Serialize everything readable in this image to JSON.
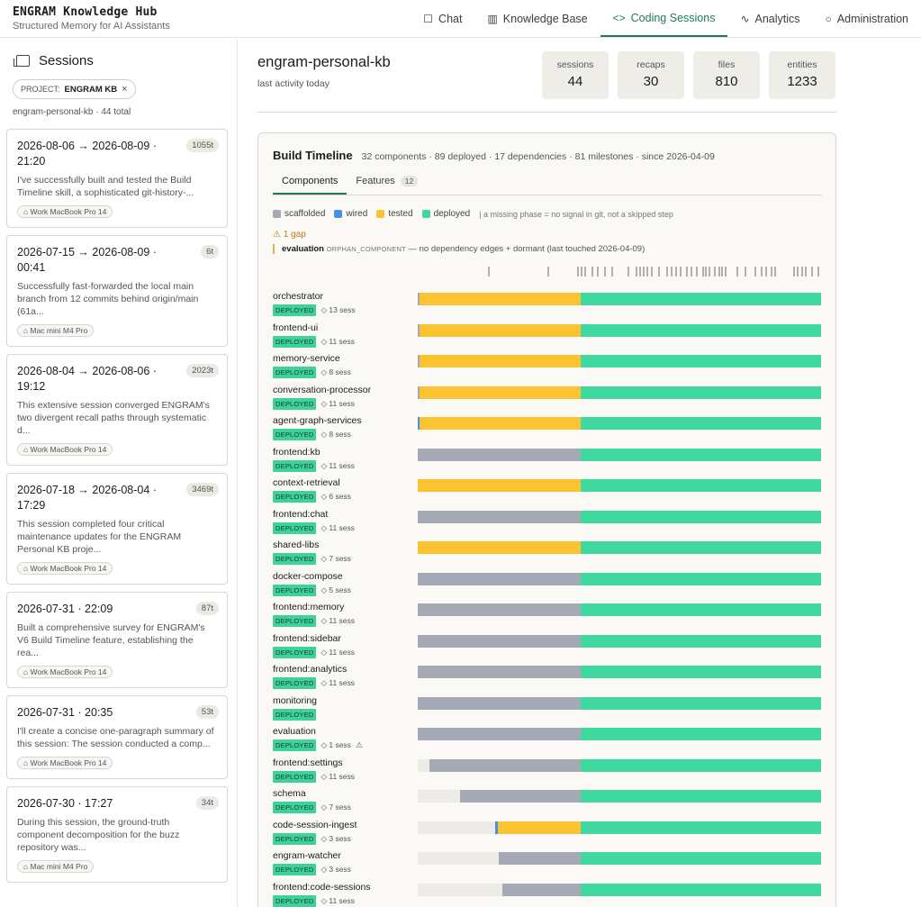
{
  "app": {
    "title": "ENGRAM Knowledge Hub",
    "subtitle": "Structured Memory for AI Assistants"
  },
  "nav": {
    "items": [
      {
        "label": "Chat",
        "icon": "chat-icon",
        "glyph": "☐",
        "active": false
      },
      {
        "label": "Knowledge Base",
        "icon": "book-icon",
        "glyph": "▥",
        "active": false
      },
      {
        "label": "Coding Sessions",
        "icon": "code-icon",
        "glyph": "<>",
        "active": true
      },
      {
        "label": "Analytics",
        "icon": "activity-icon",
        "glyph": "∿",
        "active": false
      },
      {
        "label": "Administration",
        "icon": "shield-icon",
        "glyph": "○",
        "active": false
      }
    ]
  },
  "sidebar": {
    "title": "Sessions",
    "filter_prefix": "PROJECT:",
    "filter_value": "ENGRAM KB",
    "filter_close": "×",
    "count_text": "engram-personal-kb · 44 total",
    "sessions": [
      {
        "date": "2026-08-06 → 2026-08-09 · 21:20",
        "badge": "1055t",
        "text": "I've successfully built and tested the Build Timeline skill, a sophisticated git-history-...",
        "device": "⌂ Work MacBook Pro 14"
      },
      {
        "date": "2026-07-15 → 2026-08-09 · 00:41",
        "badge": "6t",
        "text": "Successfully fast-forwarded the local main branch from 12 commits behind origin/main (61a...",
        "device": "⌂ Mac mini M4 Pro"
      },
      {
        "date": "2026-08-04 → 2026-08-06 · 19:12",
        "badge": "2023t",
        "text": "This extensive session converged ENGRAM's two divergent recall paths through systematic d...",
        "device": "⌂ Work MacBook Pro 14"
      },
      {
        "date": "2026-07-18 → 2026-08-04 · 17:29",
        "badge": "3469t",
        "text": "This session completed four critical maintenance updates for the ENGRAM Personal KB proje...",
        "device": "⌂ Work MacBook Pro 14"
      },
      {
        "date": "2026-07-31 · 22:09",
        "badge": "87t",
        "text": "Built a comprehensive survey for ENGRAM's V6 Build Timeline feature, establishing the rea...",
        "device": "⌂ Work MacBook Pro 14"
      },
      {
        "date": "2026-07-31 · 20:35",
        "badge": "53t",
        "text": "I'll create a concise one-paragraph summary of this session: The session conducted a comp...",
        "device": "⌂ Work MacBook Pro 14"
      },
      {
        "date": "2026-07-30 · 17:27",
        "badge": "34t",
        "text": "During this session, the ground-truth component decomposition for the buzz repository was...",
        "device": "⌂ Mac mini M4 Pro"
      }
    ]
  },
  "main": {
    "title": "engram-personal-kb",
    "subtitle": "last activity today",
    "stats": [
      {
        "label": "sessions",
        "value": "44"
      },
      {
        "label": "recaps",
        "value": "30"
      },
      {
        "label": "files",
        "value": "810"
      },
      {
        "label": "entities",
        "value": "1233"
      }
    ]
  },
  "timeline": {
    "title": "Build Timeline",
    "meta": "32 components · 89 deployed · 17 dependencies · 81 milestones · since 2026-04-09",
    "tabs": [
      {
        "label": "Components",
        "count": "",
        "active": true
      },
      {
        "label": "Features",
        "count": "12",
        "active": false
      }
    ],
    "legend": [
      {
        "label": "scaffolded",
        "color": "#a4a9b3"
      },
      {
        "label": "wired",
        "color": "#4a90e2"
      },
      {
        "label": "tested",
        "color": "#fbc232"
      },
      {
        "label": "deployed",
        "color": "#3fd99f"
      }
    ],
    "legend_note": "| a missing phase = no signal in git, not a skipped step",
    "gap_label": "⚠ 1 gap",
    "gap_name": "evaluation",
    "gap_tag": "ORPHAN_COMPONENT",
    "gap_text": "— no dependency edges + dormant (last touched 2026-04-09)",
    "deployed_label": "DEPLOYED",
    "milestone_ticks": [
      0.175,
      0.321,
      0.395,
      0.405,
      0.413,
      0.43,
      0.445,
      0.461,
      0.48,
      0.521,
      0.54,
      0.548,
      0.558,
      0.567,
      0.578,
      0.595,
      0.615,
      0.628,
      0.638,
      0.65,
      0.665,
      0.676,
      0.69,
      0.705,
      0.712,
      0.722,
      0.735,
      0.745,
      0.752,
      0.762,
      0.79,
      0.81,
      0.835,
      0.85,
      0.862,
      0.875,
      0.885,
      0.93,
      0.94,
      0.95,
      0.96,
      0.975,
      0.99
    ],
    "colors": {
      "empty": "#ecebe6",
      "scaffolded": "#a4a9b3",
      "wired": "#4a90e2",
      "tested": "#fbc232",
      "deployed": "#3fd99f"
    },
    "components": [
      {
        "name": "orchestrator",
        "sess": "◇ 13 sess",
        "warn": false,
        "phases": {
          "empty": 0,
          "scaffolded": 0.004,
          "wired": 0,
          "tested": 0.401,
          "deployed": 0.595
        }
      },
      {
        "name": "frontend-ui",
        "sess": "◇ 11 sess",
        "warn": false,
        "phases": {
          "empty": 0,
          "scaffolded": 0.004,
          "wired": 0,
          "tested": 0.401,
          "deployed": 0.595
        }
      },
      {
        "name": "memory-service",
        "sess": "◇ 8 sess",
        "warn": false,
        "phases": {
          "empty": 0,
          "scaffolded": 0.004,
          "wired": 0,
          "tested": 0.401,
          "deployed": 0.595
        }
      },
      {
        "name": "conversation-processor",
        "sess": "◇ 11 sess",
        "warn": false,
        "phases": {
          "empty": 0,
          "scaffolded": 0.004,
          "wired": 0,
          "tested": 0.401,
          "deployed": 0.595
        }
      },
      {
        "name": "agent-graph-services",
        "sess": "◇ 8 sess",
        "warn": false,
        "phases": {
          "empty": 0,
          "scaffolded": 0,
          "wired": 0.004,
          "tested": 0.401,
          "deployed": 0.595
        }
      },
      {
        "name": "frontend:kb",
        "sess": "◇ 11 sess",
        "warn": false,
        "phases": {
          "empty": 0,
          "scaffolded": 0.405,
          "wired": 0,
          "tested": 0,
          "deployed": 0.595
        }
      },
      {
        "name": "context-retrieval",
        "sess": "◇ 6 sess",
        "warn": false,
        "phases": {
          "empty": 0,
          "scaffolded": 0,
          "wired": 0,
          "tested": 0.405,
          "deployed": 0.595
        }
      },
      {
        "name": "frontend:chat",
        "sess": "◇ 11 sess",
        "warn": false,
        "phases": {
          "empty": 0,
          "scaffolded": 0.405,
          "wired": 0,
          "tested": 0,
          "deployed": 0.595
        }
      },
      {
        "name": "shared-libs",
        "sess": "◇ 7 sess",
        "warn": false,
        "phases": {
          "empty": 0,
          "scaffolded": 0,
          "wired": 0,
          "tested": 0.405,
          "deployed": 0.595
        }
      },
      {
        "name": "docker-compose",
        "sess": "◇ 5 sess",
        "warn": false,
        "phases": {
          "empty": 0,
          "scaffolded": 0.405,
          "wired": 0,
          "tested": 0,
          "deployed": 0.595
        }
      },
      {
        "name": "frontend:memory",
        "sess": "◇ 11 sess",
        "warn": false,
        "phases": {
          "empty": 0,
          "scaffolded": 0.405,
          "wired": 0,
          "tested": 0,
          "deployed": 0.595
        }
      },
      {
        "name": "frontend:sidebar",
        "sess": "◇ 11 sess",
        "warn": false,
        "phases": {
          "empty": 0,
          "scaffolded": 0.405,
          "wired": 0,
          "tested": 0,
          "deployed": 0.595
        }
      },
      {
        "name": "frontend:analytics",
        "sess": "◇ 11 sess",
        "warn": false,
        "phases": {
          "empty": 0,
          "scaffolded": 0.405,
          "wired": 0,
          "tested": 0,
          "deployed": 0.595
        }
      },
      {
        "name": "monitoring",
        "sess": "",
        "warn": false,
        "phases": {
          "empty": 0,
          "scaffolded": 0.405,
          "wired": 0,
          "tested": 0,
          "deployed": 0.595
        }
      },
      {
        "name": "evaluation",
        "sess": "◇ 1 sess",
        "warn": true,
        "phases": {
          "empty": 0,
          "scaffolded": 0.405,
          "wired": 0,
          "tested": 0,
          "deployed": 0.595
        }
      },
      {
        "name": "frontend:settings",
        "sess": "◇ 11 sess",
        "warn": false,
        "phases": {
          "empty": 0.03,
          "scaffolded": 0.375,
          "wired": 0,
          "tested": 0,
          "deployed": 0.595
        }
      },
      {
        "name": "schema",
        "sess": "◇ 7 sess",
        "warn": false,
        "phases": {
          "empty": 0.105,
          "scaffolded": 0.3,
          "wired": 0,
          "tested": 0,
          "deployed": 0.595
        }
      },
      {
        "name": "code-session-ingest",
        "sess": "◇ 3 sess",
        "warn": false,
        "phases": {
          "empty": 0.193,
          "scaffolded": 0,
          "wired": 0.006,
          "tested": 0.206,
          "deployed": 0.595
        }
      },
      {
        "name": "engram-watcher",
        "sess": "◇ 3 sess",
        "warn": false,
        "phases": {
          "empty": 0.2,
          "scaffolded": 0.205,
          "wired": 0,
          "tested": 0,
          "deployed": 0.595
        }
      },
      {
        "name": "frontend:code-sessions",
        "sess": "◇ 11 sess",
        "warn": false,
        "phases": {
          "empty": 0.21,
          "scaffolded": 0.195,
          "wired": 0,
          "tested": 0,
          "deployed": 0.595
        }
      }
    ]
  }
}
